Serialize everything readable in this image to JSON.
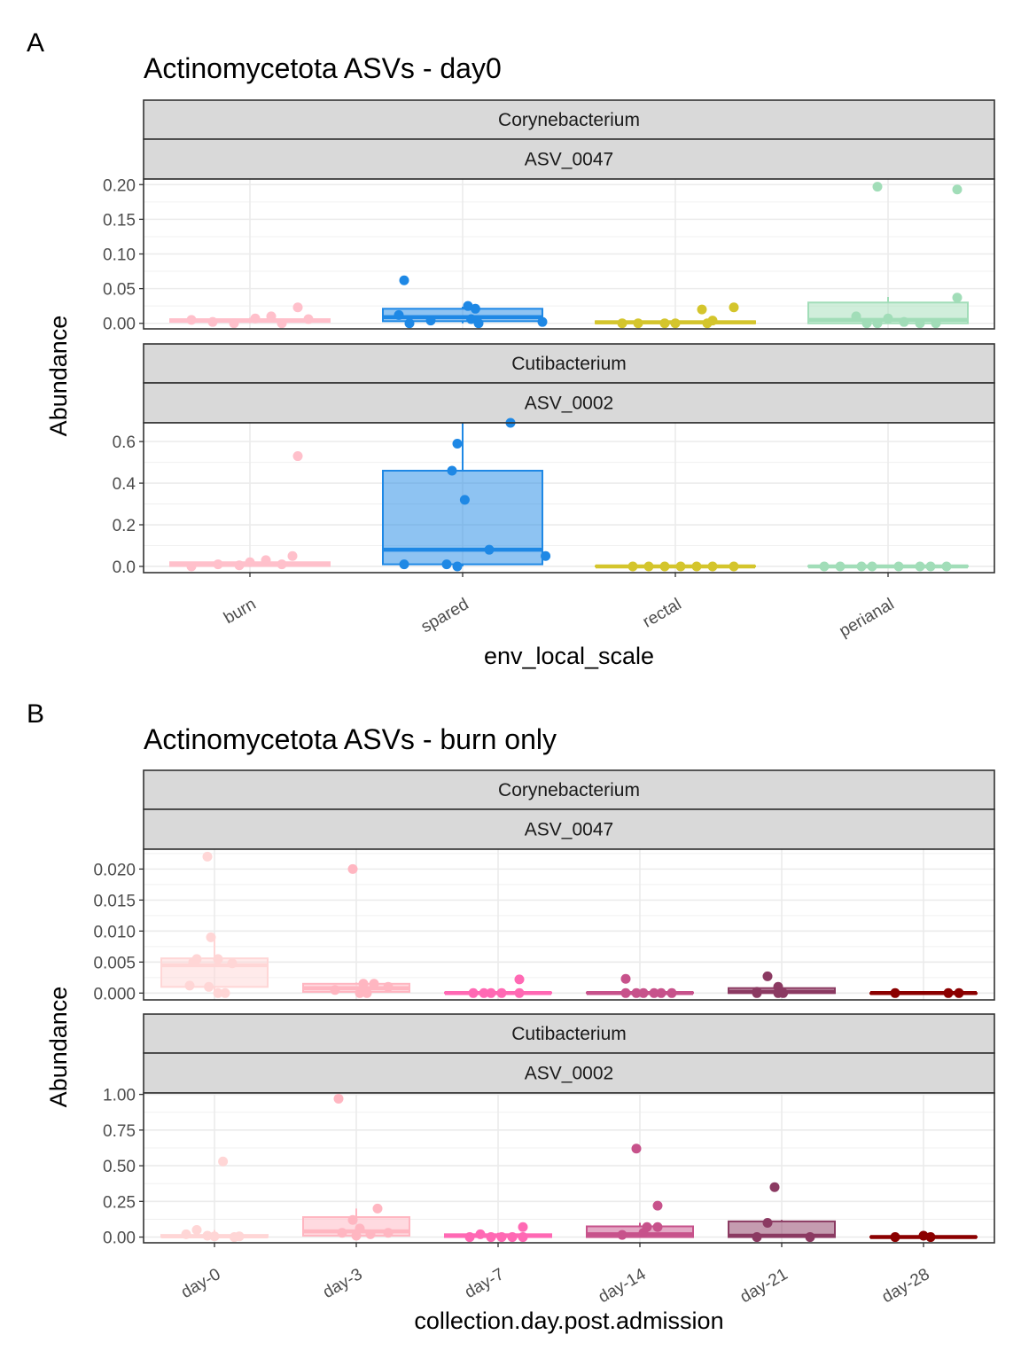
{
  "figure": {
    "panel_a_label": "A",
    "panel_b_label": "B"
  },
  "chart_data": [
    {
      "type": "box",
      "panel": "A",
      "title": "Actinomycetota ASVs - day0",
      "xlabel": "env_local_scale",
      "ylabel": "Abundance",
      "categories": [
        "burn",
        "spared",
        "rectal",
        "perianal"
      ],
      "colors": [
        "#FFC0CB",
        "#1E88E5",
        "#D4C52C",
        "#A1DDB8"
      ],
      "grid": true,
      "facets": [
        {
          "strip_top": "Corynebacterium",
          "strip_bottom": "ASV_0047",
          "ylim": [
            -0.008,
            0.208
          ],
          "yticks": [
            0.0,
            0.05,
            0.1,
            0.15,
            0.2
          ],
          "tick_labels": [
            "0.00",
            "0.05",
            "0.10",
            "0.15",
            "0.20"
          ],
          "boxes": [
            {
              "q1": 0.002,
              "median": 0.004,
              "q3": 0.006,
              "whisker_low": 0.0,
              "whisker_high": 0.008
            },
            {
              "q1": 0.003,
              "median": 0.009,
              "q3": 0.021,
              "whisker_low": 0.0,
              "whisker_high": 0.024
            },
            {
              "q1": 0.0,
              "median": 0.0015,
              "q3": 0.003,
              "whisker_low": 0.0,
              "whisker_high": 0.006
            },
            {
              "q1": 0.0,
              "median": 0.005,
              "q3": 0.03,
              "whisker_low": 0.0,
              "whisker_high": 0.038
            }
          ],
          "points": [
            [
              [
                -0.55,
                0.005
              ],
              [
                -0.35,
                0.002
              ],
              [
                -0.15,
                0.0
              ],
              [
                0.05,
                0.007
              ],
              [
                0.2,
                0.01
              ],
              [
                0.3,
                0.0
              ],
              [
                0.45,
                0.023
              ],
              [
                0.55,
                0.006
              ]
            ],
            [
              [
                -0.6,
                0.012
              ],
              [
                -0.55,
                0.062
              ],
              [
                -0.5,
                0.0
              ],
              [
                -0.3,
                0.004
              ],
              [
                0.05,
                0.025
              ],
              [
                0.08,
                0.006
              ],
              [
                0.12,
                0.021
              ],
              [
                0.15,
                0.0
              ],
              [
                0.75,
                0.002
              ]
            ],
            [
              [
                -0.5,
                0.0
              ],
              [
                -0.35,
                0.0
              ],
              [
                -0.1,
                0.0
              ],
              [
                0.0,
                0.0
              ],
              [
                0.25,
                0.02
              ],
              [
                0.3,
                0.0
              ],
              [
                0.35,
                0.004
              ],
              [
                0.55,
                0.023
              ]
            ],
            [
              [
                -0.3,
                0.01
              ],
              [
                -0.2,
                0.0
              ],
              [
                -0.1,
                0.0
              ],
              [
                -0.1,
                0.197
              ],
              [
                0.0,
                0.007
              ],
              [
                0.15,
                0.002
              ],
              [
                0.3,
                0.0
              ],
              [
                0.45,
                0.0
              ],
              [
                0.65,
                0.037
              ],
              [
                0.65,
                0.193
              ]
            ]
          ]
        },
        {
          "strip_top": "Cutibacterium",
          "strip_bottom": "ASV_0002",
          "ylim": [
            -0.03,
            0.69
          ],
          "yticks": [
            0.0,
            0.2,
            0.4,
            0.6
          ],
          "tick_labels": [
            "0.0",
            "0.2",
            "0.4",
            "0.6"
          ],
          "boxes": [
            {
              "q1": 0.002,
              "median": 0.01,
              "q3": 0.02,
              "whisker_low": 0.0,
              "whisker_high": 0.025
            },
            {
              "q1": 0.01,
              "median": 0.08,
              "q3": 0.46,
              "whisker_low": 0.0,
              "whisker_high": 0.69
            },
            {
              "q1": 0.0,
              "median": 0.0,
              "q3": 0.002,
              "whisker_low": 0.0,
              "whisker_high": 0.003
            },
            {
              "q1": 0.0,
              "median": 0.0,
              "q3": 0.002,
              "whisker_low": 0.0,
              "whisker_high": 0.003
            }
          ],
          "points": [
            [
              [
                -0.55,
                0.0
              ],
              [
                -0.3,
                0.01
              ],
              [
                -0.1,
                0.005
              ],
              [
                0.0,
                0.02
              ],
              [
                0.15,
                0.03
              ],
              [
                0.3,
                0.01
              ],
              [
                0.4,
                0.05
              ],
              [
                0.45,
                0.53
              ]
            ],
            [
              [
                -0.55,
                0.01
              ],
              [
                -0.15,
                0.01
              ],
              [
                -0.1,
                0.46
              ],
              [
                -0.05,
                0.0
              ],
              [
                -0.05,
                0.59
              ],
              [
                0.02,
                0.32
              ],
              [
                0.25,
                0.08
              ],
              [
                0.45,
                0.69
              ],
              [
                0.78,
                0.05
              ]
            ],
            [
              [
                -0.4,
                0.0
              ],
              [
                -0.25,
                0.0
              ],
              [
                -0.1,
                0.0
              ],
              [
                0.05,
                0.0
              ],
              [
                0.2,
                0.0
              ],
              [
                0.35,
                0.0
              ],
              [
                0.55,
                0.0
              ]
            ],
            [
              [
                -0.6,
                0.0
              ],
              [
                -0.45,
                0.0
              ],
              [
                -0.25,
                0.0
              ],
              [
                -0.15,
                0.0
              ],
              [
                0.1,
                0.0
              ],
              [
                0.3,
                0.0
              ],
              [
                0.4,
                0.0
              ],
              [
                0.55,
                0.0
              ]
            ]
          ]
        }
      ]
    },
    {
      "type": "box",
      "panel": "B",
      "title": "Actinomycetota ASVs - burn only",
      "xlabel": "collection.day.post.admission",
      "ylabel": "Abundance",
      "categories": [
        "day-0",
        "day-3",
        "day-7",
        "day-14",
        "day-21",
        "day-28"
      ],
      "colors": [
        "#FFD6D6",
        "#FFB6C1",
        "#FF69B4",
        "#C7528B",
        "#8B3A62",
        "#8B0000"
      ],
      "grid": true,
      "facets": [
        {
          "strip_top": "Corynebacterium",
          "strip_bottom": "ASV_0047",
          "ylim": [
            -0.0011,
            0.0232
          ],
          "yticks": [
            0.0,
            0.005,
            0.01,
            0.015,
            0.02
          ],
          "tick_labels": [
            "0.000",
            "0.005",
            "0.010",
            "0.015",
            "0.020"
          ],
          "boxes": [
            {
              "q1": 0.001,
              "median": 0.0045,
              "q3": 0.0056,
              "whisker_low": 0.0,
              "whisker_high": 0.009
            },
            {
              "q1": 0.0002,
              "median": 0.0008,
              "q3": 0.0015,
              "whisker_low": 0.0,
              "whisker_high": 0.0017
            },
            {
              "q1": 0.0,
              "median": 0.0,
              "q3": 0.0001,
              "whisker_low": 0.0,
              "whisker_high": 0.0002
            },
            {
              "q1": 0.0,
              "median": 0.0,
              "q3": 0.0001,
              "whisker_low": 0.0,
              "whisker_high": 0.0002
            },
            {
              "q1": 0.0,
              "median": 0.0002,
              "q3": 0.0008,
              "whisker_low": 0.0,
              "whisker_high": 0.0012
            },
            {
              "q1": 0.0,
              "median": 0.0,
              "q3": 0.0,
              "whisker_low": 0.0,
              "whisker_high": 0.0
            }
          ],
          "points": [
            [
              [
                -0.35,
                0.0012
              ],
              [
                -0.3,
                0.005
              ],
              [
                -0.25,
                0.0055
              ],
              [
                -0.1,
                0.022
              ],
              [
                -0.08,
                0.001
              ],
              [
                -0.05,
                0.009
              ],
              [
                0.05,
                0.0055
              ],
              [
                0.05,
                0.0
              ],
              [
                0.15,
                0.0
              ],
              [
                0.25,
                0.0048
              ]
            ],
            [
              [
                -0.3,
                0.0005
              ],
              [
                -0.05,
                0.02
              ],
              [
                0.05,
                0.0
              ],
              [
                0.1,
                0.0015
              ],
              [
                0.15,
                0.0
              ],
              [
                0.25,
                0.0015
              ],
              [
                0.45,
                0.001
              ]
            ],
            [
              [
                -0.35,
                0.0
              ],
              [
                -0.2,
                0.0
              ],
              [
                -0.1,
                0.0
              ],
              [
                0.05,
                0.0
              ],
              [
                0.3,
                0.0
              ],
              [
                0.3,
                0.0022
              ]
            ],
            [
              [
                -0.2,
                0.0023
              ],
              [
                -0.2,
                0.0
              ],
              [
                -0.05,
                0.0
              ],
              [
                0.05,
                0.0
              ],
              [
                0.2,
                0.0
              ],
              [
                0.3,
                0.0
              ],
              [
                0.45,
                0.0
              ]
            ],
            [
              [
                -0.35,
                0.0
              ],
              [
                -0.35,
                0.0002
              ],
              [
                -0.2,
                0.0027
              ],
              [
                -0.05,
                0.0
              ],
              [
                -0.05,
                0.001
              ],
              [
                0.02,
                0.0
              ]
            ],
            [
              [
                -0.4,
                0.0
              ],
              [
                0.35,
                0.0
              ],
              [
                0.5,
                0.0
              ]
            ]
          ]
        },
        {
          "strip_top": "Cutibacterium",
          "strip_bottom": "ASV_0002",
          "ylim": [
            -0.04,
            1.01
          ],
          "yticks": [
            0.0,
            0.25,
            0.5,
            0.75,
            1.0
          ],
          "tick_labels": [
            "0.00",
            "0.25",
            "0.50",
            "0.75",
            "1.00"
          ],
          "boxes": [
            {
              "q1": 0.0,
              "median": 0.005,
              "q3": 0.015,
              "whisker_low": 0.0,
              "whisker_high": 0.05
            },
            {
              "q1": 0.01,
              "median": 0.04,
              "q3": 0.14,
              "whisker_low": 0.0,
              "whisker_high": 0.2
            },
            {
              "q1": 0.0,
              "median": 0.01,
              "q3": 0.02,
              "whisker_low": 0.0,
              "whisker_high": 0.03
            },
            {
              "q1": 0.0,
              "median": 0.02,
              "q3": 0.075,
              "whisker_low": 0.0,
              "whisker_high": 0.1
            },
            {
              "q1": 0.0,
              "median": 0.01,
              "q3": 0.11,
              "whisker_low": 0.0,
              "whisker_high": 0.12
            },
            {
              "q1": 0.0,
              "median": 0.0,
              "q3": 0.002,
              "whisker_low": 0.0,
              "whisker_high": 0.005
            }
          ],
          "points": [
            [
              [
                -0.4,
                0.02
              ],
              [
                -0.25,
                0.05
              ],
              [
                -0.1,
                0.01
              ],
              [
                0.0,
                0.005
              ],
              [
                0.12,
                0.53
              ],
              [
                0.28,
                0.0
              ],
              [
                0.35,
                0.005
              ]
            ],
            [
              [
                -0.25,
                0.97
              ],
              [
                -0.2,
                0.03
              ],
              [
                -0.05,
                0.12
              ],
              [
                0.0,
                0.01
              ],
              [
                0.05,
                0.06
              ],
              [
                0.2,
                0.02
              ],
              [
                0.3,
                0.2
              ],
              [
                0.45,
                0.03
              ]
            ],
            [
              [
                -0.4,
                0.0
              ],
              [
                -0.25,
                0.02
              ],
              [
                -0.1,
                0.0
              ],
              [
                0.05,
                0.0
              ],
              [
                0.2,
                0.0
              ],
              [
                0.35,
                0.07
              ],
              [
                0.35,
                0.0
              ]
            ],
            [
              [
                -0.25,
                0.015
              ],
              [
                0.05,
                0.03
              ],
              [
                0.1,
                0.07
              ],
              [
                0.25,
                0.22
              ],
              [
                0.25,
                0.07
              ],
              [
                -0.05,
                0.62
              ]
            ],
            [
              [
                -0.35,
                0.0
              ],
              [
                -0.2,
                0.1
              ],
              [
                -0.1,
                0.35
              ],
              [
                0.4,
                0.0
              ]
            ],
            [
              [
                -0.4,
                0.0
              ],
              [
                0.0,
                0.01
              ],
              [
                0.1,
                0.0
              ]
            ]
          ]
        }
      ]
    }
  ]
}
